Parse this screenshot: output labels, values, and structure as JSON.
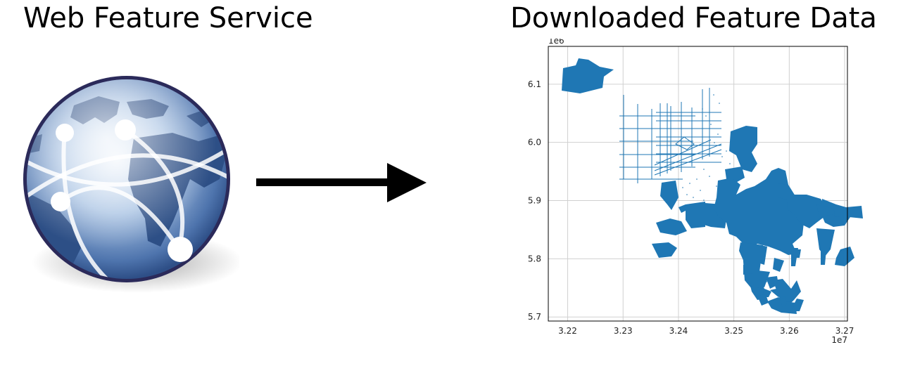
{
  "diagram": {
    "left_title": "Web Feature Service",
    "right_title": "Downloaded Feature Data",
    "left_icon": "globe-network-icon",
    "connector": "arrow-right-icon"
  },
  "colors": {
    "feature_blue": "#1f77b4",
    "globe_dark": "#2d4f86",
    "globe_rim": "#2b2a5a",
    "arrow": "#000000"
  },
  "chart_data": {
    "type": "map",
    "x_ticks": [
      "3.22",
      "3.23",
      "3.24",
      "3.25",
      "3.26",
      "3.27"
    ],
    "y_ticks": [
      "6.1",
      "6.0",
      "5.9",
      "5.8",
      "5.7"
    ],
    "x_offset_label": "1e7",
    "y_offset_label": "1e6",
    "xlim": [
      32165000,
      32705000
    ],
    "ylim": [
      5693000,
      6165000
    ],
    "grid": true
  }
}
